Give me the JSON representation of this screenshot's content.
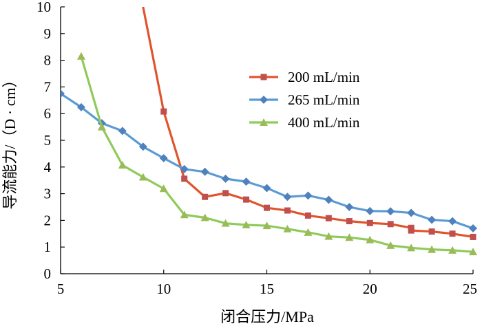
{
  "chart_data": {
    "type": "line",
    "title": "",
    "xlabel": "闭合压力/MPa",
    "ylabel": "导流能力/（D · cm）",
    "xlim": [
      5,
      25
    ],
    "ylim": [
      0,
      10
    ],
    "xticks": [
      5,
      10,
      15,
      20,
      25
    ],
    "yticks": [
      0,
      1,
      2,
      3,
      4,
      5,
      6,
      7,
      8,
      9,
      10
    ],
    "grid": false,
    "legend_position": "center-right",
    "series": [
      {
        "name": "200 mL/min",
        "color": "#c0504d",
        "marker": "square",
        "x": [
          9,
          10,
          11,
          12,
          13,
          14,
          15,
          16,
          17,
          18,
          19,
          20,
          21,
          22,
          22,
          23,
          24,
          25
        ],
        "y": [
          10,
          6.08,
          3.56,
          2.88,
          3.02,
          2.78,
          2.47,
          2.37,
          2.18,
          2.08,
          1.97,
          1.9,
          1.86,
          1.72,
          1.62,
          1.58,
          1.5,
          1.38
        ]
      },
      {
        "name": "265 mL/min",
        "color": "#4f81bd",
        "marker": "diamond",
        "x": [
          5,
          6,
          7,
          8,
          9,
          10,
          11,
          12,
          13,
          14,
          15,
          16,
          17,
          18,
          19,
          20,
          21,
          22,
          23,
          24,
          25
        ],
        "y": [
          6.75,
          6.24,
          5.64,
          5.35,
          4.76,
          4.33,
          3.92,
          3.82,
          3.56,
          3.45,
          3.21,
          2.88,
          2.93,
          2.77,
          2.5,
          2.35,
          2.34,
          2.28,
          2.02,
          1.97,
          1.7
        ]
      },
      {
        "name": "400 mL/min",
        "color": "#9bbb59",
        "marker": "triangle",
        "x": [
          6,
          7,
          8,
          9,
          10,
          11,
          12,
          13,
          14,
          15,
          16,
          17,
          18,
          19,
          20,
          21,
          22,
          23,
          24,
          25
        ],
        "y": [
          8.15,
          5.5,
          4.07,
          3.62,
          3.19,
          2.21,
          2.1,
          1.89,
          1.83,
          1.8,
          1.68,
          1.55,
          1.4,
          1.36,
          1.27,
          1.06,
          0.97,
          0.91,
          0.88,
          0.82
        ]
      }
    ]
  }
}
